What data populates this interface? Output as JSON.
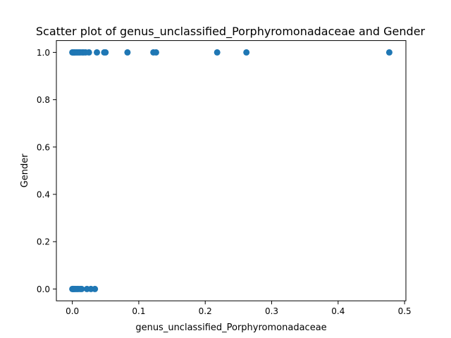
{
  "chart_data": {
    "type": "scatter",
    "title": "Scatter plot of genus_unclassified_Porphyromonadaceae and Gender",
    "xlabel": "genus_unclassified_Porphyromonadaceae",
    "ylabel": "Gender",
    "xlim": [
      -0.024,
      0.502
    ],
    "ylim": [
      -0.05,
      1.05
    ],
    "x_ticks": [
      {
        "value": 0.0,
        "label": "0.0"
      },
      {
        "value": 0.1,
        "label": "0.1"
      },
      {
        "value": 0.2,
        "label": "0.2"
      },
      {
        "value": 0.3,
        "label": "0.3"
      },
      {
        "value": 0.4,
        "label": "0.4"
      },
      {
        "value": 0.5,
        "label": "0.5"
      }
    ],
    "y_ticks": [
      {
        "value": 0.0,
        "label": "0.0"
      },
      {
        "value": 0.2,
        "label": "0.2"
      },
      {
        "value": 0.4,
        "label": "0.4"
      },
      {
        "value": 0.6,
        "label": "0.6"
      },
      {
        "value": 0.8,
        "label": "0.8"
      },
      {
        "value": 1.0,
        "label": "1.0"
      }
    ],
    "grid": false,
    "series": [
      {
        "color": "#1f77b4",
        "points": [
          {
            "x": 0.0,
            "y": 1
          },
          {
            "x": 0.001,
            "y": 1
          },
          {
            "x": 0.002,
            "y": 1
          },
          {
            "x": 0.003,
            "y": 1
          },
          {
            "x": 0.004,
            "y": 1
          },
          {
            "x": 0.006,
            "y": 1
          },
          {
            "x": 0.008,
            "y": 1
          },
          {
            "x": 0.01,
            "y": 1
          },
          {
            "x": 0.012,
            "y": 1
          },
          {
            "x": 0.015,
            "y": 1
          },
          {
            "x": 0.017,
            "y": 1
          },
          {
            "x": 0.02,
            "y": 1
          },
          {
            "x": 0.025,
            "y": 1
          },
          {
            "x": 0.037,
            "y": 1
          },
          {
            "x": 0.048,
            "y": 1
          },
          {
            "x": 0.05,
            "y": 1
          },
          {
            "x": 0.083,
            "y": 1
          },
          {
            "x": 0.122,
            "y": 1
          },
          {
            "x": 0.126,
            "y": 1
          },
          {
            "x": 0.218,
            "y": 1
          },
          {
            "x": 0.262,
            "y": 1
          },
          {
            "x": 0.477,
            "y": 1
          },
          {
            "x": 0.0,
            "y": 0
          },
          {
            "x": 0.001,
            "y": 0
          },
          {
            "x": 0.002,
            "y": 0
          },
          {
            "x": 0.003,
            "y": 0
          },
          {
            "x": 0.005,
            "y": 0
          },
          {
            "x": 0.007,
            "y": 0
          },
          {
            "x": 0.009,
            "y": 0
          },
          {
            "x": 0.012,
            "y": 0
          },
          {
            "x": 0.014,
            "y": 0
          },
          {
            "x": 0.022,
            "y": 0
          },
          {
            "x": 0.028,
            "y": 0
          },
          {
            "x": 0.034,
            "y": 0
          }
        ]
      }
    ]
  }
}
